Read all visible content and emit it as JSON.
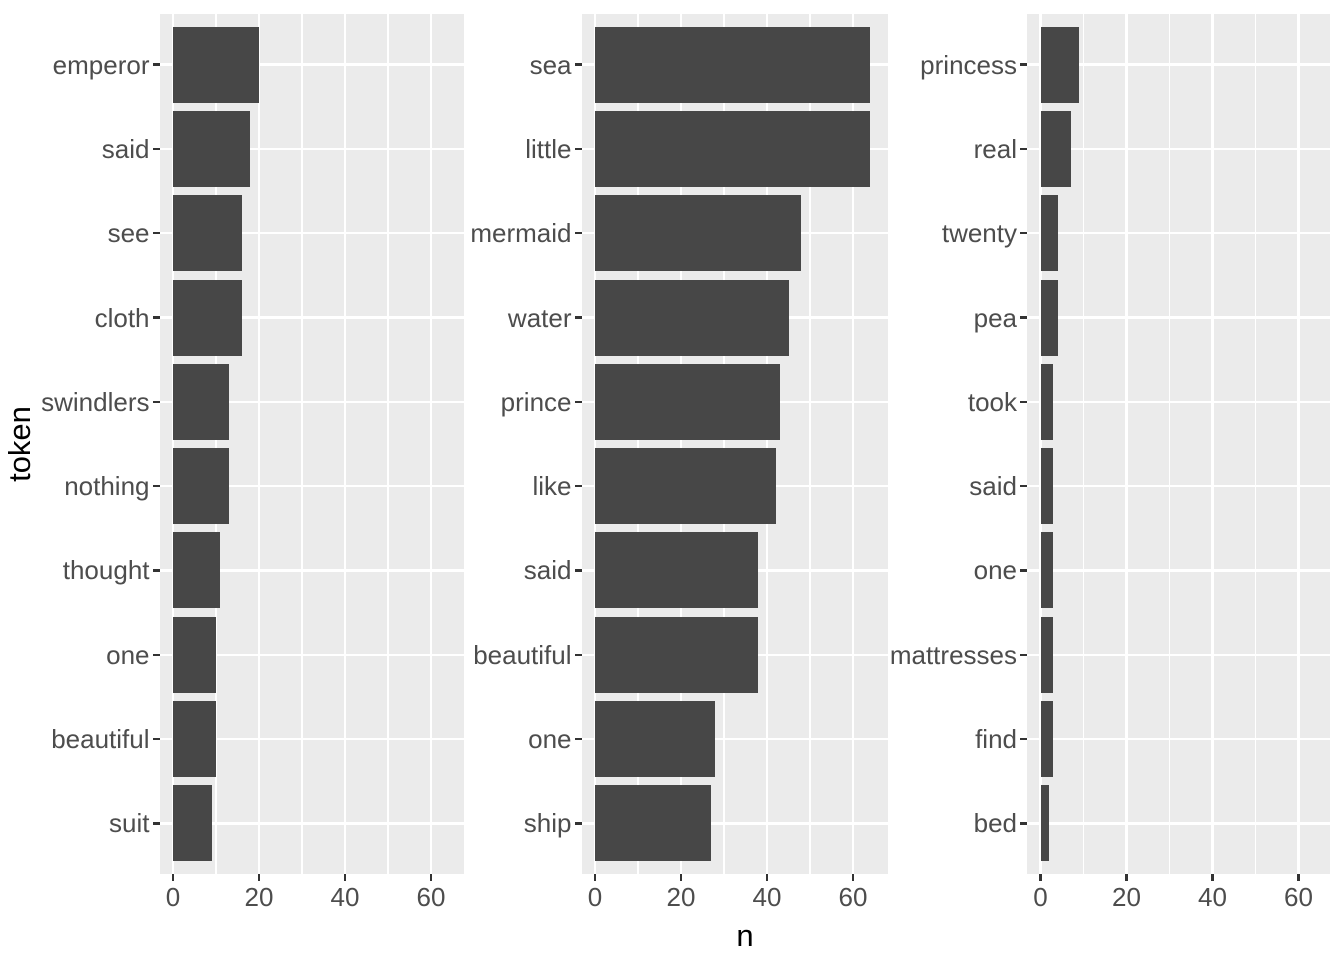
{
  "figure": {
    "background": "#ffffff",
    "panel_background": "#ebebeb",
    "bar_color": "#474747",
    "gridline_color": "#ffffff",
    "tick_mark_color": "#333333",
    "axis_text_color": "#4d4d4d",
    "axis_title_color": "#000000"
  },
  "chart_data": {
    "type": "bar",
    "orientation": "horizontal",
    "title": "",
    "xlabel": "n",
    "ylabel": "token",
    "grid": "on",
    "legend": "none",
    "facet_strips": "none",
    "shared_x": {
      "range": [
        -3.2,
        67.5
      ],
      "ticks": [
        0,
        20,
        40,
        60
      ],
      "tick_labels": [
        "0",
        "20",
        "40",
        "60"
      ],
      "minor_ticks": [
        10,
        30,
        50
      ]
    },
    "panels": [
      {
        "categories": [
          "emperor",
          "said",
          "see",
          "cloth",
          "swindlers",
          "nothing",
          "thought",
          "one",
          "beautiful",
          "suit"
        ],
        "values": [
          20,
          18,
          16,
          16,
          13,
          13,
          11,
          10,
          10,
          9
        ]
      },
      {
        "categories": [
          "sea",
          "little",
          "mermaid",
          "water",
          "prince",
          "like",
          "said",
          "beautiful",
          "one",
          "ship"
        ],
        "values": [
          64,
          64,
          48,
          45,
          43,
          42,
          38,
          38,
          28,
          27
        ]
      },
      {
        "categories": [
          "princess",
          "real",
          "twenty",
          "pea",
          "took",
          "said",
          "one",
          "mattresses",
          "find",
          "bed"
        ],
        "values": [
          9,
          7,
          4,
          4,
          3,
          3,
          3,
          3,
          3,
          2
        ]
      }
    ]
  }
}
